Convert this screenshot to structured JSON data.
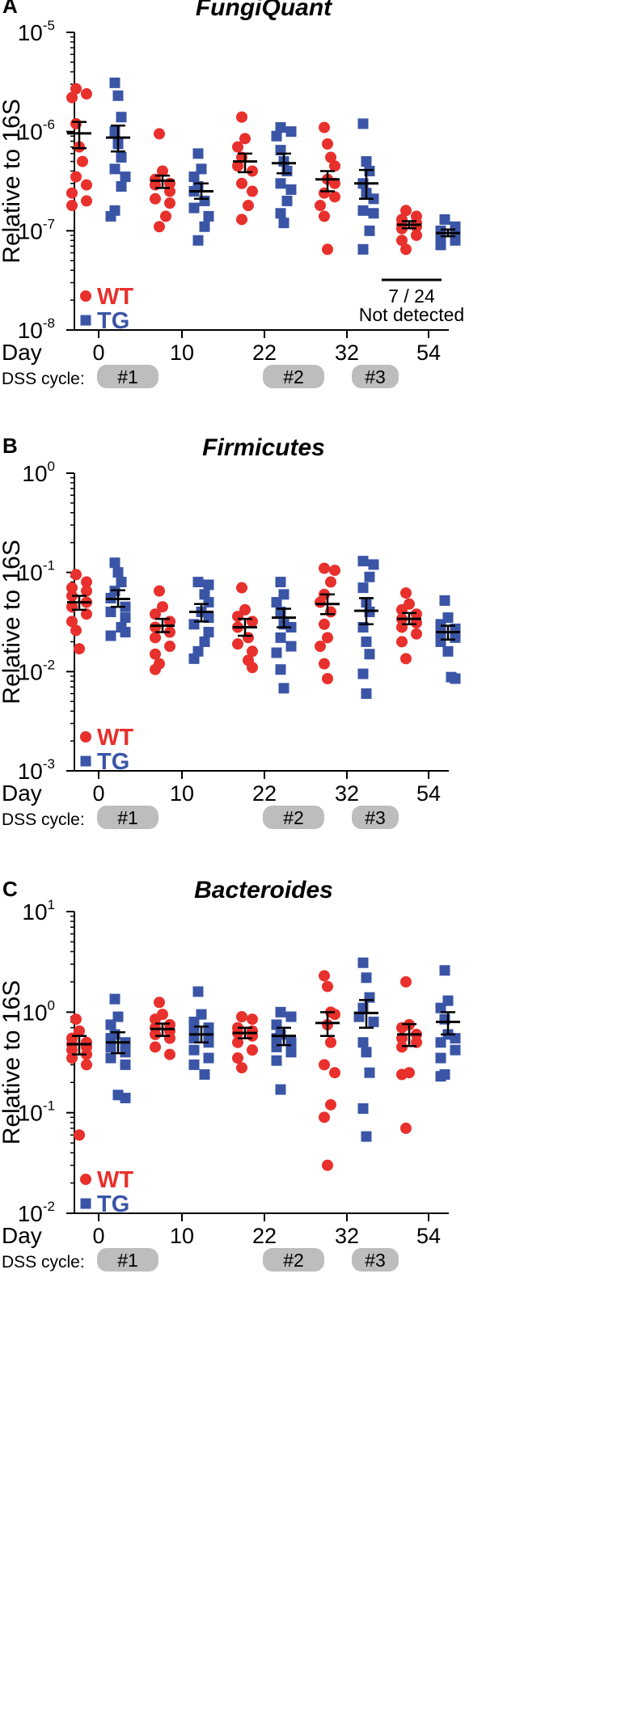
{
  "colors": {
    "wt": "#e8302c",
    "tg": "#3a55a6",
    "pill": "#bdbdbd",
    "axis": "#000000"
  },
  "x_axis": {
    "label": "Day",
    "days": [
      "0",
      "10",
      "22",
      "32",
      "54"
    ],
    "dss_label": "DSS cycle:",
    "dss_cycles": [
      {
        "label": "#1",
        "at_day": "0"
      },
      {
        "label": "#2",
        "at_day": "22"
      },
      {
        "label": "#3",
        "at_day": "32"
      }
    ]
  },
  "chart_data": [
    {
      "panel": "A",
      "title": "FungiQuant",
      "type": "scatter",
      "scale": "log10",
      "ylabel": "Relative to 16S",
      "ylim_exp": [
        -8,
        -5
      ],
      "yticks": [
        {
          "base": "10",
          "exp": "-5",
          "value_exp": -5
        },
        {
          "base": "10",
          "exp": "-6",
          "value_exp": -6
        },
        {
          "base": "10",
          "exp": "-7",
          "value_exp": -7
        },
        {
          "base": "10",
          "exp": "-8",
          "value_exp": -8
        }
      ],
      "legend": [
        {
          "label": "WT",
          "group": "wt"
        },
        {
          "label": "TG",
          "group": "tg"
        }
      ],
      "annotation": {
        "line1": "7 / 24",
        "line2": "Not detected"
      },
      "series": [
        {
          "name": "WT",
          "group": "wt",
          "marker": "circle",
          "points": [
            [
              2.4e-06,
              2.7e-06,
              2.2e-06,
              1.2e-06,
              7e-07,
              5e-07,
              3.5e-07,
              2.9e-07,
              2.4e-07,
              1.8e-07,
              2e-07
            ],
            [
              9.5e-07,
              4e-07,
              3.3e-07,
              3e-07,
              2.9e-07,
              2.5e-07,
              2.1e-07,
              1.9e-07,
              1.4e-07,
              1.1e-07
            ],
            [
              1.4e-06,
              8.5e-07,
              7e-07,
              5.5e-07,
              4.5e-07,
              4e-07,
              3e-07,
              2.5e-07,
              1.8e-07,
              1.3e-07
            ],
            [
              1.1e-06,
              7.5e-07,
              5.5e-07,
              4.5e-07,
              3.3e-07,
              3e-07,
              2.4e-07,
              2.2e-07,
              1.8e-07,
              1.4e-07,
              6.5e-08
            ],
            [
              1.6e-07,
              1.4e-07,
              1.3e-07,
              1.2e-07,
              1.15e-07,
              1.1e-07,
              1.05e-07,
              9e-08,
              8e-08,
              6.5e-08
            ]
          ],
          "mean": [
            9.6e-07,
            3.2e-07,
            5e-07,
            3.3e-07,
            1.15e-07
          ],
          "sem_low": [
            6.8e-07,
            2.7e-07,
            3.9e-07,
            2.5e-07,
            1.06e-07
          ],
          "sem_high": [
            1.25e-06,
            3.6e-07,
            6e-07,
            4e-07,
            1.25e-07
          ]
        },
        {
          "name": "TG",
          "group": "tg",
          "marker": "square",
          "points": [
            [
              3.1e-06,
              2.3e-06,
              1.4e-06,
              1e-06,
              7.5e-07,
              5.5e-07,
              4.2e-07,
              3.5e-07,
              2.8e-07,
              1.6e-07,
              1.4e-07
            ],
            [
              6e-07,
              4.2e-07,
              3.5e-07,
              2.8e-07,
              2.5e-07,
              2e-07,
              1.7e-07,
              1.4e-07,
              1.1e-07,
              8e-08
            ],
            [
              1.1e-06,
              1e-06,
              9e-07,
              6.5e-07,
              5e-07,
              4e-07,
              3e-07,
              2.6e-07,
              2e-07,
              1.5e-07,
              1.2e-07
            ],
            [
              1.2e-06,
              5e-07,
              4e-07,
              3e-07,
              2.4e-07,
              2.1e-07,
              1.6e-07,
              1.5e-07,
              1e-07,
              6.5e-08
            ],
            [
              1.3e-07,
              1.1e-07,
              1e-07,
              9.5e-08,
              9e-08,
              8e-08,
              7.2e-08
            ]
          ],
          "mean": [
            8.7e-07,
            2.5e-07,
            4.8e-07,
            3e-07,
            9.5e-08
          ],
          "sem_low": [
            6.3e-07,
            2.1e-07,
            3.8e-07,
            2.1e-07,
            8.8e-08
          ],
          "sem_high": [
            1.15e-06,
            3e-07,
            6e-07,
            4.1e-07,
            1.03e-07
          ]
        }
      ]
    },
    {
      "panel": "B",
      "title": "Firmicutes",
      "type": "scatter",
      "scale": "log10",
      "ylabel": "Relative to 16S",
      "ylim_exp": [
        -3,
        0
      ],
      "yticks": [
        {
          "base": "10",
          "exp": "0",
          "value_exp": 0
        },
        {
          "base": "10",
          "exp": "-1",
          "value_exp": -1
        },
        {
          "base": "10",
          "exp": "-2",
          "value_exp": -2
        },
        {
          "base": "10",
          "exp": "-3",
          "value_exp": -3
        }
      ],
      "legend": [
        {
          "label": "WT",
          "group": "wt"
        },
        {
          "label": "TG",
          "group": "tg"
        }
      ],
      "series": [
        {
          "name": "WT",
          "group": "wt",
          "marker": "circle",
          "points": [
            [
              0.095,
              0.08,
              0.07,
              0.065,
              0.058,
              0.05,
              0.045,
              0.038,
              0.032,
              0.026,
              0.017
            ],
            [
              0.065,
              0.045,
              0.038,
              0.032,
              0.028,
              0.025,
              0.022,
              0.018,
              0.015,
              0.012,
              0.0105
            ],
            [
              0.07,
              0.042,
              0.036,
              0.032,
              0.028,
              0.022,
              0.019,
              0.016,
              0.013,
              0.011
            ],
            [
              0.11,
              0.105,
              0.08,
              0.06,
              0.05,
              0.04,
              0.03,
              0.022,
              0.018,
              0.012,
              0.0085
            ],
            [
              0.062,
              0.048,
              0.042,
              0.038,
              0.034,
              0.031,
              0.028,
              0.024,
              0.02,
              0.0135
            ]
          ],
          "mean": [
            0.05,
            0.029,
            0.028,
            0.048,
            0.034
          ],
          "sem_low": [
            0.042,
            0.025,
            0.023,
            0.038,
            0.03
          ],
          "sem_high": [
            0.058,
            0.034,
            0.034,
            0.06,
            0.039
          ]
        },
        {
          "name": "TG",
          "group": "tg",
          "marker": "square",
          "points": [
            [
              0.125,
              0.1,
              0.08,
              0.065,
              0.055,
              0.045,
              0.04,
              0.035,
              0.028,
              0.025,
              0.023
            ],
            [
              0.08,
              0.075,
              0.06,
              0.05,
              0.04,
              0.035,
              0.03,
              0.025,
              0.02,
              0.016,
              0.0135
            ],
            [
              0.08,
              0.06,
              0.05,
              0.04,
              0.03,
              0.028,
              0.022,
              0.018,
              0.0155,
              0.0105,
              0.0068
            ],
            [
              0.13,
              0.12,
              0.09,
              0.07,
              0.05,
              0.04,
              0.028,
              0.02,
              0.015,
              0.0095,
              0.006
            ],
            [
              0.052,
              0.035,
              0.03,
              0.027,
              0.024,
              0.022,
              0.02,
              0.016,
              0.0088,
              0.0085
            ]
          ],
          "mean": [
            0.054,
            0.04,
            0.035,
            0.041,
            0.025
          ],
          "sem_low": [
            0.045,
            0.032,
            0.028,
            0.03,
            0.021
          ],
          "sem_high": [
            0.066,
            0.048,
            0.043,
            0.055,
            0.029
          ]
        }
      ]
    },
    {
      "panel": "C",
      "title": "Bacteroides",
      "type": "scatter",
      "scale": "log10",
      "ylabel": "Relative to 16S",
      "ylim_exp": [
        -2,
        1
      ],
      "yticks": [
        {
          "base": "10",
          "exp": "1",
          "value_exp": 1
        },
        {
          "base": "10",
          "exp": "0",
          "value_exp": 0
        },
        {
          "base": "10",
          "exp": "-1",
          "value_exp": -1
        },
        {
          "base": "10",
          "exp": "-2",
          "value_exp": -2
        }
      ],
      "legend": [
        {
          "label": "WT",
          "group": "wt"
        },
        {
          "label": "TG",
          "group": "tg"
        }
      ],
      "series": [
        {
          "name": "WT",
          "group": "wt",
          "marker": "circle",
          "points": [
            [
              0.85,
              0.65,
              0.55,
              0.5,
              0.48,
              0.45,
              0.42,
              0.38,
              0.35,
              0.3,
              0.06
            ],
            [
              1.25,
              0.95,
              0.85,
              0.75,
              0.7,
              0.65,
              0.6,
              0.55,
              0.45,
              0.38
            ],
            [
              0.9,
              0.85,
              0.7,
              0.65,
              0.62,
              0.58,
              0.5,
              0.42,
              0.35,
              0.28
            ],
            [
              2.3,
              1.8,
              1.0,
              0.95,
              0.75,
              0.5,
              0.3,
              0.25,
              0.12,
              0.09,
              0.03
            ],
            [
              2.0,
              0.75,
              0.7,
              0.6,
              0.55,
              0.5,
              0.45,
              0.25,
              0.24,
              0.07
            ]
          ],
          "mean": [
            0.48,
            0.68,
            0.62,
            0.78,
            0.6
          ],
          "sem_low": [
            0.38,
            0.58,
            0.55,
            0.58,
            0.46
          ],
          "sem_high": [
            0.58,
            0.77,
            0.7,
            1.0,
            0.76
          ]
        },
        {
          "name": "TG",
          "group": "tg",
          "marker": "square",
          "points": [
            [
              1.35,
              0.9,
              0.75,
              0.6,
              0.55,
              0.5,
              0.45,
              0.4,
              0.35,
              0.3,
              0.15,
              0.14
            ],
            [
              1.6,
              0.95,
              0.8,
              0.7,
              0.65,
              0.6,
              0.55,
              0.5,
              0.42,
              0.35,
              0.3,
              0.24
            ],
            [
              1.0,
              0.9,
              0.75,
              0.6,
              0.55,
              0.5,
              0.45,
              0.4,
              0.33,
              0.17
            ],
            [
              3.1,
              2.2,
              1.4,
              1.1,
              0.9,
              0.8,
              0.5,
              0.4,
              0.25,
              0.11,
              0.058
            ],
            [
              2.6,
              1.3,
              1.1,
              0.85,
              0.6,
              0.55,
              0.5,
              0.42,
              0.35,
              0.24,
              0.23
            ]
          ],
          "mean": [
            0.5,
            0.6,
            0.58,
            0.98,
            0.8
          ],
          "sem_low": [
            0.39,
            0.5,
            0.47,
            0.7,
            0.6
          ],
          "sem_high": [
            0.63,
            0.72,
            0.7,
            1.32,
            1.0
          ]
        }
      ]
    }
  ]
}
